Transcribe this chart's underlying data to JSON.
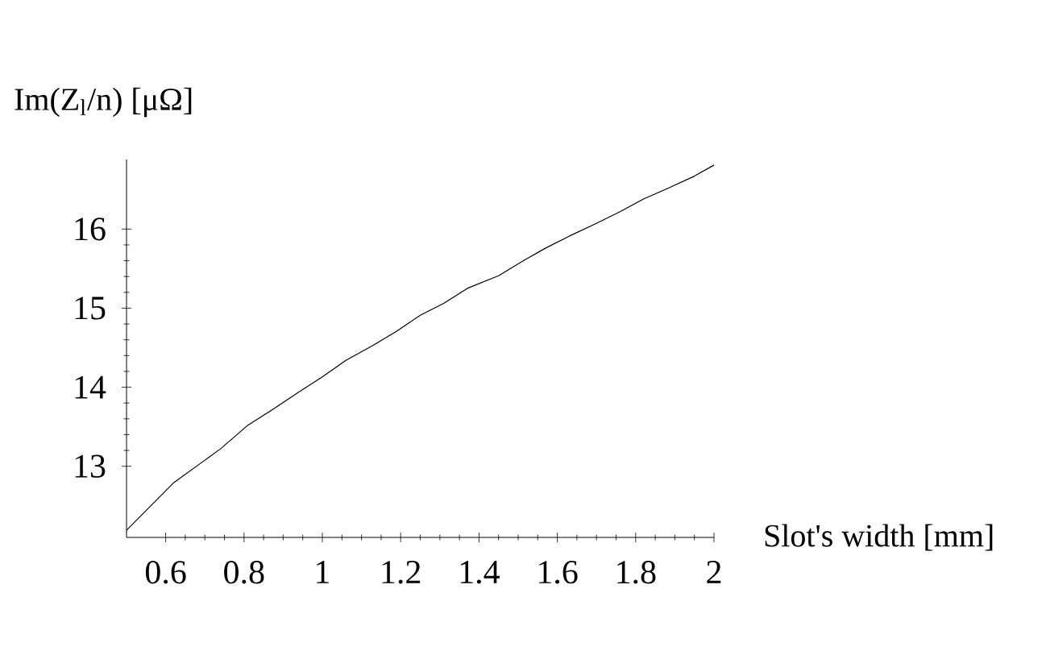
{
  "chart_data": {
    "type": "line",
    "xlabel": "Slot's width [mm]",
    "ylabel": "Im(Z$_{l}$/n)  [μΩ]",
    "x": [
      0.5,
      0.62,
      0.74,
      0.81,
      0.88,
      0.94,
      1.0,
      1.06,
      1.13,
      1.19,
      1.25,
      1.31,
      1.37,
      1.45,
      1.51,
      1.57,
      1.63,
      1.69,
      1.76,
      1.82,
      1.88,
      1.95,
      2.0
    ],
    "series": [
      {
        "color": "#000000",
        "values": [
          12.19,
          12.79,
          13.22,
          13.52,
          13.74,
          13.94,
          14.13,
          14.34,
          14.53,
          14.71,
          14.91,
          15.06,
          15.25,
          15.41,
          15.59,
          15.76,
          15.91,
          16.05,
          16.22,
          16.38,
          16.51,
          16.67,
          16.81
        ]
      }
    ],
    "xlim": [
      0.5,
      2.0
    ],
    "ylim": [
      12.1,
      16.88
    ],
    "xticks": [
      0.6,
      0.8,
      1,
      1.2,
      1.4,
      1.6,
      1.8,
      2
    ],
    "yticks": [
      13,
      14,
      15,
      16
    ],
    "grid": false,
    "marker": "none",
    "line_style": "solid"
  }
}
